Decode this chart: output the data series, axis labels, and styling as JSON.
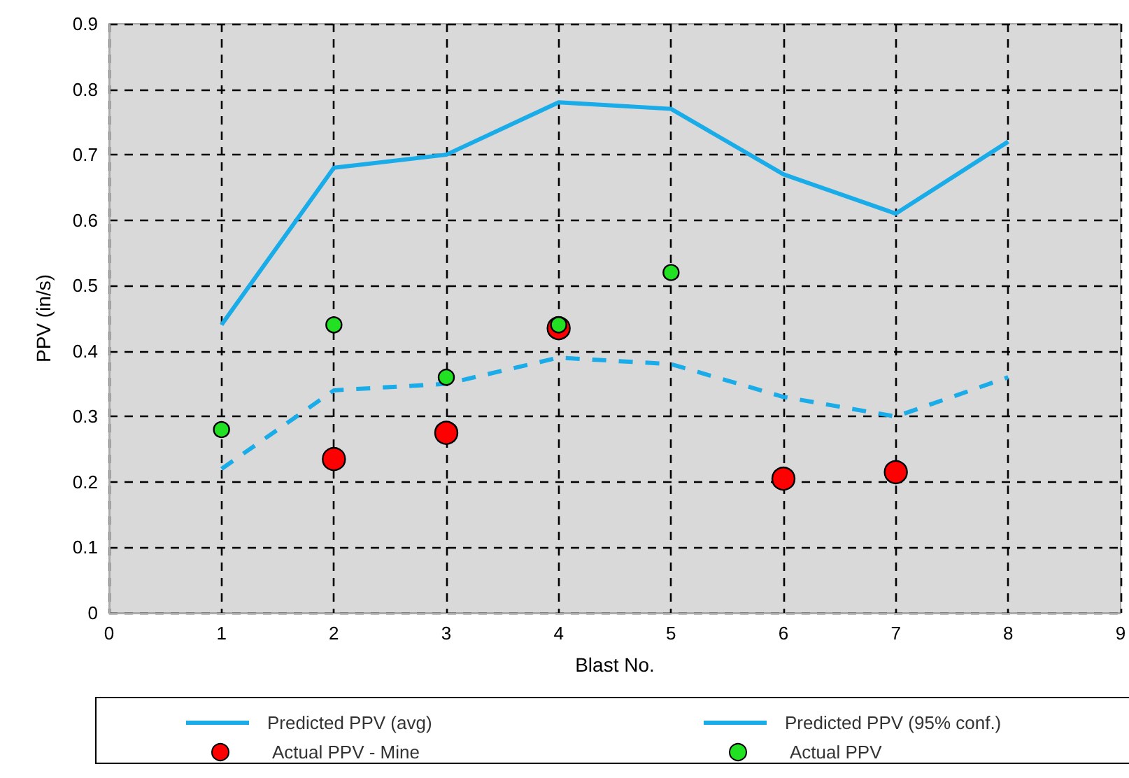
{
  "chart_data": {
    "type": "line",
    "xlabel": "Blast No.",
    "ylabel": "PPV (in/s)",
    "x": [
      1,
      2,
      3,
      4,
      5,
      6,
      7,
      8
    ],
    "series": [
      {
        "name": "Predicted PPV (avg)",
        "color": "#1aace8",
        "line_style": "dashed",
        "values": [
          0.22,
          0.34,
          0.35,
          0.39,
          0.38,
          0.33,
          0.3,
          0.36
        ]
      },
      {
        "name": "Predicted PPV (95% conf.)",
        "color": "#1aace8",
        "line_style": "solid",
        "values": [
          0.44,
          0.68,
          0.7,
          0.78,
          0.77,
          0.67,
          0.61,
          0.72
        ]
      },
      {
        "name": "Actual PPV - Mine",
        "type": "scatter",
        "marker": "circle",
        "color": "#ff0000",
        "x": [
          2,
          3,
          4,
          6,
          7
        ],
        "values": [
          0.235,
          0.275,
          0.435,
          0.205,
          0.215
        ]
      },
      {
        "name": "Actual PPV",
        "type": "scatter",
        "marker": "circle",
        "color": "#22e022",
        "x": [
          1,
          2,
          3,
          4,
          5
        ],
        "values": [
          0.28,
          0.44,
          0.36,
          0.44,
          0.52
        ]
      }
    ],
    "xlim": [
      0,
      9
    ],
    "xticks": [
      0,
      1,
      2,
      3,
      4,
      5,
      6,
      7,
      8,
      9
    ],
    "ylim": [
      0,
      0.9
    ],
    "yticks": [
      0,
      0.1,
      0.2,
      0.3,
      0.4,
      0.5,
      0.6,
      0.7,
      0.8,
      0.9
    ],
    "grid": true,
    "legend": "bottom"
  }
}
